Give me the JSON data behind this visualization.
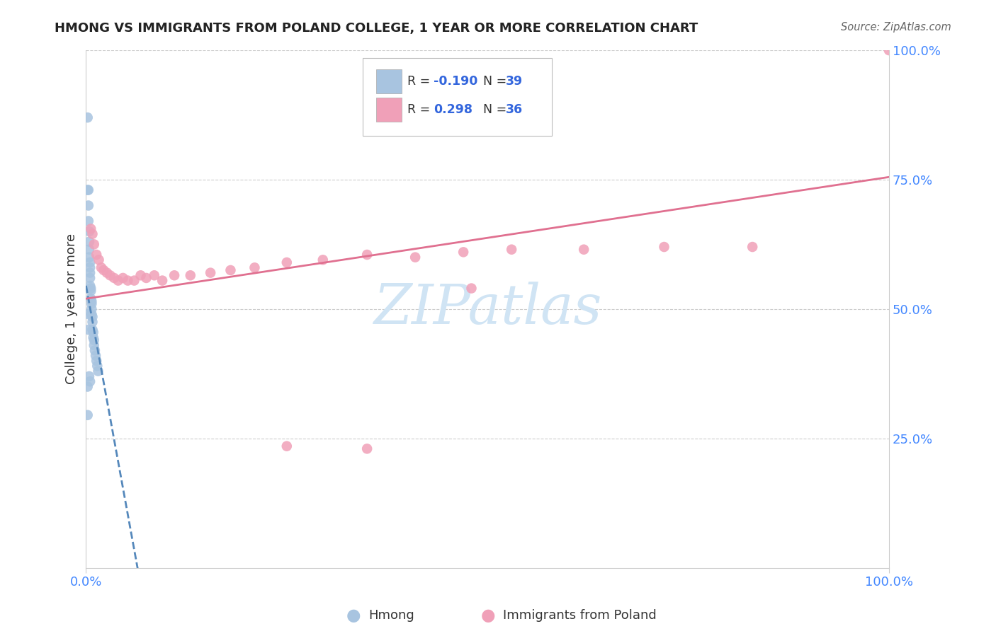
{
  "title": "HMONG VS IMMIGRANTS FROM POLAND COLLEGE, 1 YEAR OR MORE CORRELATION CHART",
  "source": "Source: ZipAtlas.com",
  "ylabel": "College, 1 year or more",
  "legend_label1": "Hmong",
  "legend_label2": "Immigrants from Poland",
  "R1": -0.19,
  "N1": 39,
  "R2": 0.298,
  "N2": 36,
  "hmong_color": "#a8c4e0",
  "poland_color": "#f0a0b8",
  "hmong_line_color": "#5588bb",
  "poland_line_color": "#e07090",
  "background_color": "#ffffff",
  "watermark_color": "#d0e4f4",
  "grid_color": "#cccccc",
  "tick_color": "#4488ff",
  "title_color": "#222222",
  "source_color": "#666666",
  "label_color": "#333333",
  "hmong_x": [
    0.002,
    0.002,
    0.002,
    0.002,
    0.003,
    0.003,
    0.003,
    0.004,
    0.004,
    0.004,
    0.004,
    0.005,
    0.005,
    0.005,
    0.005,
    0.005,
    0.006,
    0.006,
    0.006,
    0.007,
    0.007,
    0.007,
    0.007,
    0.008,
    0.008,
    0.008,
    0.009,
    0.009,
    0.01,
    0.01,
    0.011,
    0.012,
    0.013,
    0.014,
    0.015,
    0.003,
    0.003,
    0.004,
    0.005
  ],
  "hmong_y": [
    0.87,
    0.73,
    0.35,
    0.295,
    0.73,
    0.7,
    0.67,
    0.65,
    0.63,
    0.615,
    0.6,
    0.59,
    0.58,
    0.57,
    0.56,
    0.545,
    0.54,
    0.535,
    0.52,
    0.515,
    0.51,
    0.5,
    0.49,
    0.485,
    0.475,
    0.46,
    0.455,
    0.445,
    0.44,
    0.43,
    0.42,
    0.41,
    0.4,
    0.39,
    0.38,
    0.49,
    0.46,
    0.37,
    0.36
  ],
  "poland_x": [
    0.006,
    0.008,
    0.01,
    0.013,
    0.016,
    0.019,
    0.022,
    0.026,
    0.03,
    0.035,
    0.04,
    0.046,
    0.052,
    0.06,
    0.068,
    0.075,
    0.085,
    0.095,
    0.11,
    0.13,
    0.155,
    0.18,
    0.21,
    0.25,
    0.295,
    0.35,
    0.41,
    0.47,
    0.53,
    0.62,
    0.72,
    0.83,
    0.25,
    0.35,
    0.48,
    1.0
  ],
  "poland_y": [
    0.655,
    0.645,
    0.625,
    0.605,
    0.595,
    0.58,
    0.575,
    0.57,
    0.565,
    0.56,
    0.555,
    0.56,
    0.555,
    0.555,
    0.565,
    0.56,
    0.565,
    0.555,
    0.565,
    0.565,
    0.57,
    0.575,
    0.58,
    0.59,
    0.595,
    0.605,
    0.6,
    0.61,
    0.615,
    0.615,
    0.62,
    0.62,
    0.235,
    0.23,
    0.54,
    1.0
  ],
  "hmong_line_intercept": 0.545,
  "hmong_line_slope": -8.5,
  "poland_line_intercept": 0.52,
  "poland_line_slope": 0.235,
  "xlim": [
    0.0,
    1.0
  ],
  "ylim": [
    0.0,
    1.0
  ]
}
